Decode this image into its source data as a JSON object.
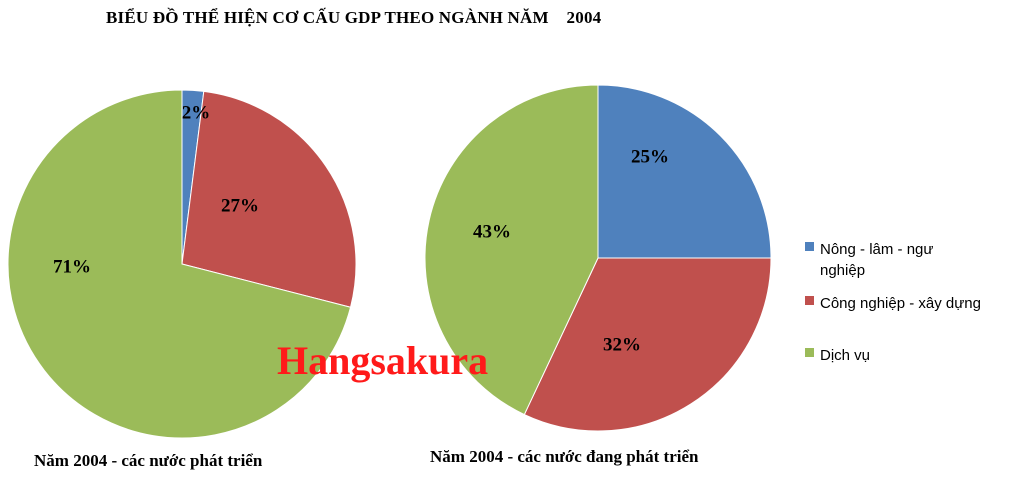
{
  "chart_data": {
    "type": "pie",
    "title": "BIỂU ĐỒ THỂ HIỆN CƠ CẤU GDP THEO NGÀNH NĂM    2004",
    "categories": [
      "Nông - lâm - ngư nghiệp",
      "Công nghiệp - xây dựng",
      "Dịch vụ"
    ],
    "colors": [
      "#4f81bd",
      "#c0504d",
      "#9bbb59"
    ],
    "pies": [
      {
        "caption": "Năm 2004 -  các nước phát triển",
        "values": [
          2,
          27,
          71
        ],
        "labels": [
          "2%",
          "27%",
          "71%"
        ]
      },
      {
        "caption": "Năm 2004 -  các nước đang phát triển",
        "values": [
          25,
          32,
          43
        ],
        "labels": [
          "25%",
          "32%",
          "43%"
        ]
      }
    ],
    "legend": {
      "position": "right",
      "entries": [
        [
          "Nông  - lâm - ngư",
          "nghiệp"
        ],
        [
          "Công  nghiệp - xây dựng"
        ],
        [
          "Dịch vụ"
        ]
      ]
    }
  },
  "watermark": "Hangsakura"
}
